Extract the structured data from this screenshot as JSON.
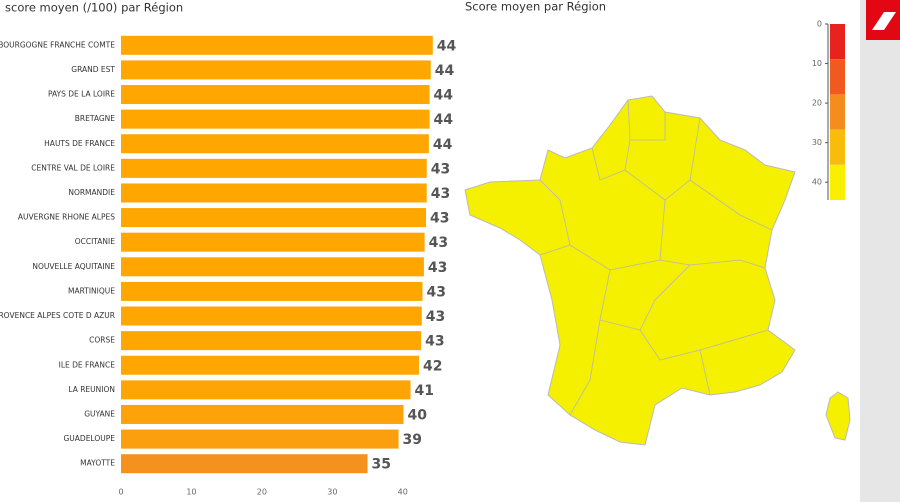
{
  "chart_data": [
    {
      "type": "bar",
      "orientation": "horizontal",
      "title": "score moyen (/100) par Région",
      "categories": [
        "BOURGOGNE FRANCHE COMTE",
        "GRAND EST",
        "PAYS DE LA LOIRE",
        "BRETAGNE",
        "HAUTS DE FRANCE",
        "CENTRE VAL DE LOIRE",
        "NORMANDIE",
        "AUVERGNE RHONE ALPES",
        "OCCITANIE",
        "NOUVELLE AQUITAINE",
        "MARTINIQUE",
        "PROVENCE ALPES COTE D AZUR",
        "CORSE",
        "ILE DE FRANCE",
        "LA REUNION",
        "GUYANE",
        "GUADELOUPE",
        "MAYOTTE"
      ],
      "values": [
        44.26,
        43.97,
        43.8,
        43.8,
        43.7,
        43.4,
        43.4,
        43.3,
        43.1,
        43.0,
        42.8,
        42.7,
        42.6,
        42.3,
        41.1,
        40.1,
        39.4,
        35.0
      ],
      "value_labels": [
        "44",
        "44",
        "44",
        "44",
        "44",
        "43",
        "43",
        "43",
        "43",
        "43",
        "43",
        "43",
        "43",
        "42",
        "41",
        "40",
        "39",
        "35"
      ],
      "colors": [
        "#ffa600",
        "#ffa600",
        "#ffa600",
        "#ffa600",
        "#ffa600",
        "#ffa600",
        "#ffa600",
        "#ffa600",
        "#ffa600",
        "#ffa600",
        "#ffa600",
        "#ffa600",
        "#ffa600",
        "#ffa600",
        "#fea404",
        "#fda208",
        "#fb9f0e",
        "#f5921e"
      ],
      "xlim": [
        0,
        45
      ],
      "xticks": [
        0,
        10,
        20,
        30,
        40
      ]
    },
    {
      "type": "map",
      "title": "Score moyen par Région",
      "fill": "#f5ef00",
      "colorbar": {
        "ylim": [
          0,
          44.5
        ],
        "yticks": [
          0,
          10,
          20,
          30,
          40
        ],
        "colors": [
          "#e8231e",
          "#f05a1e",
          "#f48c1e",
          "#f8bd0a",
          "#f8f000"
        ]
      }
    }
  ]
}
